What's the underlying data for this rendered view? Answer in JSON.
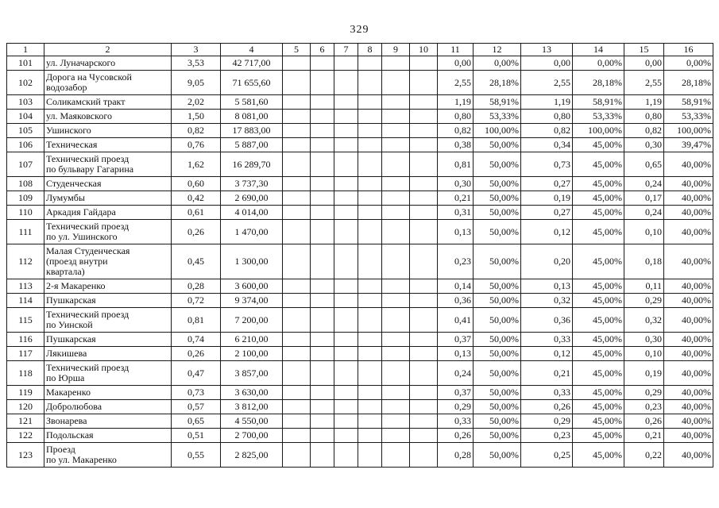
{
  "page": {
    "number": "329"
  },
  "table": {
    "headers": [
      "1",
      "2",
      "3",
      "4",
      "5",
      "6",
      "7",
      "8",
      "9",
      "10",
      "11",
      "12",
      "13",
      "14",
      "15",
      "16"
    ],
    "empty_columns_note": "columns 5-10 contain no values",
    "rows": [
      [
        "101",
        "ул. Луначарского",
        "3,53",
        "42 717,00",
        "0,00",
        "0,00%",
        "0,00",
        "0,00%",
        "0,00",
        "0,00%"
      ],
      [
        "102",
        "Дорога на Чусовской\nводозабор",
        "9,05",
        "71 655,60",
        "2,55",
        "28,18%",
        "2,55",
        "28,18%",
        "2,55",
        "28,18%"
      ],
      [
        "103",
        "Соликамский тракт",
        "2,02",
        "5 581,60",
        "1,19",
        "58,91%",
        "1,19",
        "58,91%",
        "1,19",
        "58,91%"
      ],
      [
        "104",
        "ул. Маяковского",
        "1,50",
        "8 081,00",
        "0,80",
        "53,33%",
        "0,80",
        "53,33%",
        "0,80",
        "53,33%"
      ],
      [
        "105",
        "Ушинского",
        "0,82",
        "17 883,00",
        "0,82",
        "100,00%",
        "0,82",
        "100,00%",
        "0,82",
        "100,00%"
      ],
      [
        "106",
        "Техническая",
        "0,76",
        "5 887,00",
        "0,38",
        "50,00%",
        "0,34",
        "45,00%",
        "0,30",
        "39,47%"
      ],
      [
        "107",
        "Технический проезд\nпо бульвару Гагарина",
        "1,62",
        "16 289,70",
        "0,81",
        "50,00%",
        "0,73",
        "45,00%",
        "0,65",
        "40,00%"
      ],
      [
        "108",
        "Студенческая",
        "0,60",
        "3 737,30",
        "0,30",
        "50,00%",
        "0,27",
        "45,00%",
        "0,24",
        "40,00%"
      ],
      [
        "109",
        "Лумумбы",
        "0,42",
        "2 690,00",
        "0,21",
        "50,00%",
        "0,19",
        "45,00%",
        "0,17",
        "40,00%"
      ],
      [
        "110",
        "Аркадия Гайдара",
        "0,61",
        "4 014,00",
        "0,31",
        "50,00%",
        "0,27",
        "45,00%",
        "0,24",
        "40,00%"
      ],
      [
        "111",
        "Технический проезд\nпо ул. Ушинского",
        "0,26",
        "1 470,00",
        "0,13",
        "50,00%",
        "0,12",
        "45,00%",
        "0,10",
        "40,00%"
      ],
      [
        "112",
        "Малая Студенческая\n(проезд внутри\nквартала)",
        "0,45",
        "1 300,00",
        "0,23",
        "50,00%",
        "0,20",
        "45,00%",
        "0,18",
        "40,00%"
      ],
      [
        "113",
        "2-я Макаренко",
        "0,28",
        "3 600,00",
        "0,14",
        "50,00%",
        "0,13",
        "45,00%",
        "0,11",
        "40,00%"
      ],
      [
        "114",
        "Пушкарская",
        "0,72",
        "9 374,00",
        "0,36",
        "50,00%",
        "0,32",
        "45,00%",
        "0,29",
        "40,00%"
      ],
      [
        "115",
        "Технический проезд\nпо Уинской",
        "0,81",
        "7 200,00",
        "0,41",
        "50,00%",
        "0,36",
        "45,00%",
        "0,32",
        "40,00%"
      ],
      [
        "116",
        "Пушкарская",
        "0,74",
        "6 210,00",
        "0,37",
        "50,00%",
        "0,33",
        "45,00%",
        "0,30",
        "40,00%"
      ],
      [
        "117",
        "Лякишева",
        "0,26",
        "2 100,00",
        "0,13",
        "50,00%",
        "0,12",
        "45,00%",
        "0,10",
        "40,00%"
      ],
      [
        "118",
        "Технический проезд\nпо Юрша",
        "0,47",
        "3 857,00",
        "0,24",
        "50,00%",
        "0,21",
        "45,00%",
        "0,19",
        "40,00%"
      ],
      [
        "119",
        "Макаренко",
        "0,73",
        "3 630,00",
        "0,37",
        "50,00%",
        "0,33",
        "45,00%",
        "0,29",
        "40,00%"
      ],
      [
        "120",
        "Добролюбова",
        "0,57",
        "3 812,00",
        "0,29",
        "50,00%",
        "0,26",
        "45,00%",
        "0,23",
        "40,00%"
      ],
      [
        "121",
        "Звонарева",
        "0,65",
        "4 550,00",
        "0,33",
        "50,00%",
        "0,29",
        "45,00%",
        "0,26",
        "40,00%"
      ],
      [
        "122",
        "Подольская",
        "0,51",
        "2 700,00",
        "0,26",
        "50,00%",
        "0,23",
        "45,00%",
        "0,21",
        "40,00%"
      ],
      [
        "123",
        "Проезд\nпо ул. Макаренко",
        "0,55",
        "2 825,00",
        "0,28",
        "50,00%",
        "0,25",
        "45,00%",
        "0,22",
        "40,00%"
      ]
    ]
  }
}
